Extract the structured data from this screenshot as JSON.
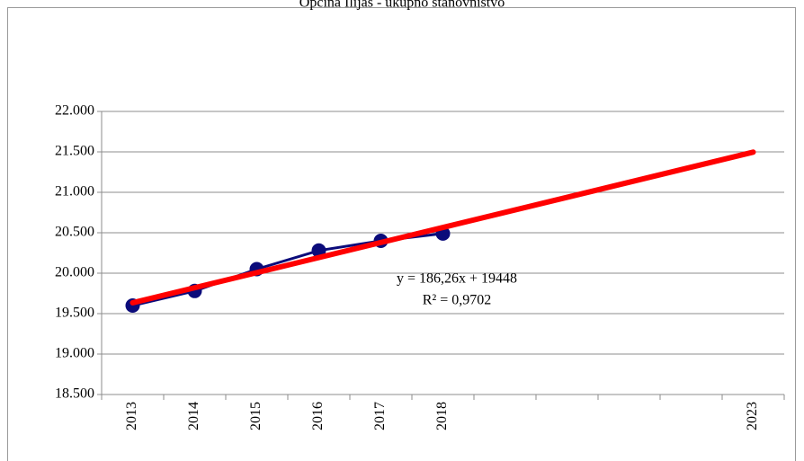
{
  "chart_data": {
    "type": "line",
    "title": "Općina Ilijaš - ukupno stanovništvo",
    "categories": [
      "2013",
      "2014",
      "2015",
      "2016",
      "2017",
      "2018",
      null,
      null,
      null,
      null,
      "2023"
    ],
    "series": [
      {
        "name": "Općina Ilijaš",
        "color": "#0b0b7a",
        "values": [
          19600,
          19780,
          20050,
          20280,
          20400,
          20490,
          null,
          null,
          null,
          null,
          null
        ]
      }
    ],
    "trendline": {
      "slope": 186.26,
      "intercept": 19448,
      "color": "#ff0000",
      "equation": "y = 186,26x + 19448",
      "r2": "R² = 0,9702"
    },
    "ylim": [
      18500,
      22000
    ],
    "yticks": [
      {
        "value": 18500,
        "label": "18.500"
      },
      {
        "value": 19000,
        "label": "19.000"
      },
      {
        "value": 19500,
        "label": "19.500"
      },
      {
        "value": 20000,
        "label": "20.000"
      },
      {
        "value": 20500,
        "label": "20.500"
      },
      {
        "value": 21000,
        "label": "21.000"
      },
      {
        "value": 21500,
        "label": "21.500"
      },
      {
        "value": 22000,
        "label": "22.000"
      }
    ],
    "grid": true
  }
}
